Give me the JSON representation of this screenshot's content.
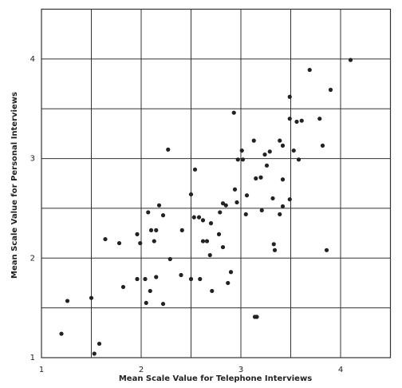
{
  "chart_data": {
    "type": "scatter",
    "x_label": "Mean Scale Value for Telephone Interviews",
    "y_label": "Mean Scale Value for Personal Interviews",
    "xlim": [
      1,
      4.5
    ],
    "ylim": [
      1,
      4.5
    ],
    "xticks": [
      1,
      2,
      3,
      4
    ],
    "yticks": [
      1,
      2,
      3,
      4
    ],
    "minor_xticks": [
      1.5,
      2.5,
      3.5
    ],
    "minor_yticks": [
      1.5,
      2.5,
      3.5
    ],
    "grid": true,
    "color": "#222",
    "x": [
      1.2,
      1.26,
      1.5,
      1.58,
      1.53,
      1.64,
      1.78,
      1.82,
      1.96,
      1.99,
      1.96,
      2.04,
      2.05,
      2.07,
      2.1,
      2.13,
      2.15,
      2.18,
      2.15,
      2.09,
      2.22,
      2.22,
      2.27,
      2.29,
      2.41,
      2.4,
      2.5,
      2.5,
      2.54,
      2.53,
      2.58,
      2.62,
      2.59,
      2.62,
      2.66,
      2.7,
      2.69,
      2.71,
      2.78,
      2.79,
      2.82,
      2.85,
      2.82,
      2.87,
      2.9,
      2.93,
      2.94,
      2.96,
      2.97,
      3.01,
      3.02,
      3.05,
      3.06,
      3.13,
      3.15,
      3.14,
      3.16,
      3.2,
      3.21,
      3.24,
      3.26,
      3.29,
      3.32,
      3.33,
      3.34,
      3.39,
      3.42,
      3.39,
      3.42,
      3.42,
      3.49,
      3.49,
      3.49,
      3.53,
      3.56,
      3.61,
      3.58,
      3.69,
      3.79,
      3.82,
      3.86,
      3.9,
      4.1
    ],
    "y": [
      1.24,
      1.57,
      1.6,
      1.14,
      1.04,
      2.19,
      2.15,
      1.71,
      2.24,
      2.15,
      1.79,
      1.79,
      1.55,
      2.46,
      2.28,
      2.17,
      2.28,
      2.53,
      1.81,
      1.67,
      2.43,
      1.54,
      3.09,
      1.99,
      2.28,
      1.83,
      2.64,
      1.79,
      2.89,
      2.41,
      2.41,
      2.38,
      1.79,
      2.17,
      2.17,
      2.35,
      2.03,
      1.67,
      2.24,
      2.46,
      2.55,
      2.53,
      2.11,
      1.75,
      1.86,
      3.46,
      2.69,
      2.56,
      2.99,
      3.08,
      2.99,
      2.44,
      2.63,
      3.18,
      2.8,
      1.41,
      1.41,
      2.81,
      2.48,
      3.04,
      2.93,
      3.07,
      2.6,
      2.14,
      2.08,
      3.18,
      3.13,
      2.44,
      2.79,
      2.52,
      3.4,
      3.62,
      2.59,
      3.08,
      3.37,
      3.38,
      2.99,
      3.89,
      3.4,
      3.13,
      2.08,
      3.69,
      3.99
    ]
  }
}
